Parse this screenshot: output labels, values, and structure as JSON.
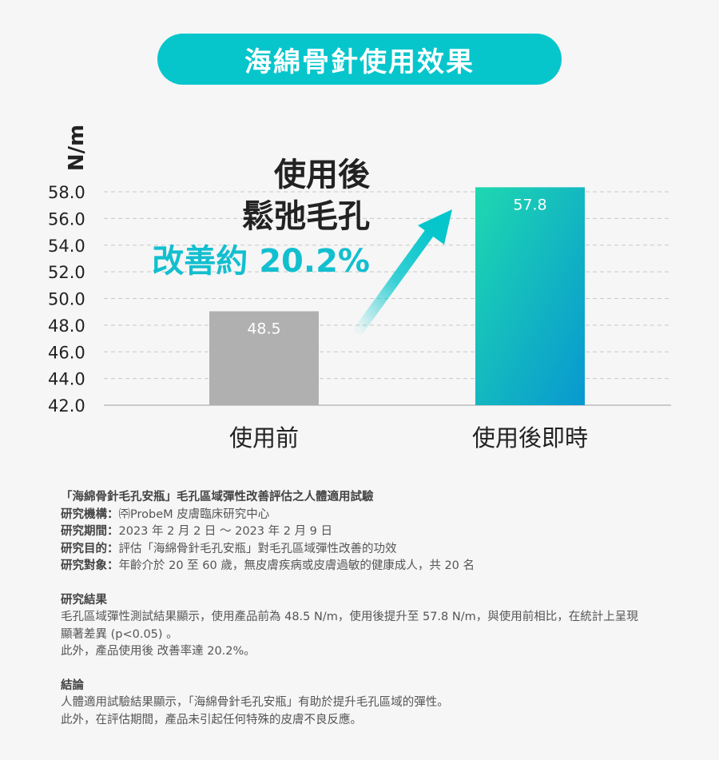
{
  "title": "海綿骨針使用效果",
  "headline": {
    "line1": "使用後",
    "line2": "鬆弛毛孔",
    "line3": "改善約 20.2%"
  },
  "colors": {
    "accent": "#06c6cc",
    "before_bar": "#b0b0b0",
    "after_bar_top": "#1ed8b0",
    "after_bar_bottom": "#0898d0",
    "highlight_text": "#12bfcf"
  },
  "chart_data": {
    "type": "bar",
    "categories": [
      "使用前",
      "使用後即時"
    ],
    "values": [
      48.5,
      57.8
    ],
    "data_labels": [
      "48.5",
      "57.8"
    ],
    "ylabel": "N/m",
    "ylim": [
      42.0,
      58.0
    ],
    "yticks": [
      "58.0",
      "56.0",
      "54.0",
      "52.0",
      "50.0",
      "48.0",
      "46.0",
      "44.0",
      "42.0"
    ],
    "grid": true,
    "annotation": "arrow-up-right"
  },
  "notes": {
    "study_title": "「海綿骨針毛孔安瓶」毛孔區域彈性改善評估之人體適用試驗",
    "rows": [
      {
        "label": "研究機構：",
        "value": "㈜ProbeM 皮膚臨床研究中心"
      },
      {
        "label": "研究期間：",
        "value": "2023 年 2 月 2 日 ～ 2023 年 2 月 9 日"
      },
      {
        "label": "研究目的：",
        "value": "評估「海綿骨針毛孔安瓶」對毛孔區域彈性改善的功效"
      },
      {
        "label": "研究對象：",
        "value": "年齡介於 20 至 60 歲，無皮膚疾病或皮膚過敏的健康成人，共 20 名"
      }
    ],
    "results_heading": "研究結果",
    "results_lines": [
      "毛孔區域彈性測試結果顯示，使用產品前為 48.5 N/m，使用後提升至 57.8 N/m，與使用前相比，在統計上呈現",
      "顯著差異 (p<0.05) 。",
      "此外，產品使用後 改善率達 20.2%。"
    ],
    "conclusion_heading": "結論",
    "conclusion_lines": [
      "人體適用試驗結果顯示，「海綿骨針毛孔安瓶」有助於提升毛孔區域的彈性。",
      "此外，在評估期間，產品未引起任何特殊的皮膚不良反應。"
    ]
  }
}
